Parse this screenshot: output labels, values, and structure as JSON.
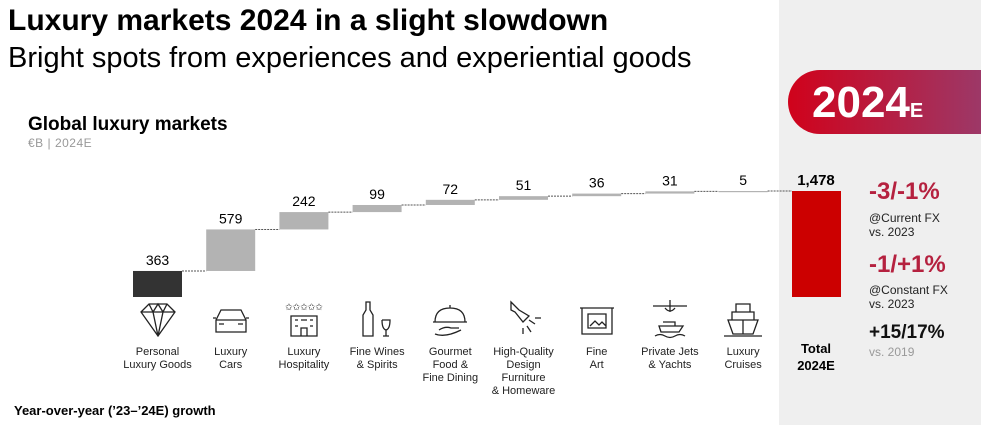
{
  "header": {
    "title": "Luxury markets 2024 in a slight slowdown",
    "subtitle": "Bright spots from experiences and experiential goods"
  },
  "banner": {
    "year": "2024",
    "suffix": "E"
  },
  "chart_data": {
    "type": "bar",
    "subtype": "waterfall",
    "title": "Global luxury markets",
    "unit": "€B | 2024E",
    "categories": [
      "Personal Luxury Goods",
      "Luxury Cars",
      "Luxury Hospitality",
      "Fine Wines & Spirits",
      "Gourmet Food & Fine Dining",
      "High-Quality Design Furniture & Homeware",
      "Fine Art",
      "Private Jets & Yachts",
      "Luxury Cruises"
    ],
    "label_lines": [
      [
        "Personal",
        "Luxury Goods"
      ],
      [
        "Luxury",
        "Cars"
      ],
      [
        "Luxury",
        "Hospitality"
      ],
      [
        "Fine Wines",
        "& Spirits"
      ],
      [
        "Gourmet",
        "Food &",
        "Fine Dining"
      ],
      [
        "High-Quality",
        "Design",
        "Furniture",
        "& Homeware"
      ],
      [
        "Fine",
        "Art"
      ],
      [
        "Private Jets",
        "& Yachts"
      ],
      [
        "Luxury",
        "Cruises"
      ]
    ],
    "icons": [
      "diamond-icon",
      "car-icon",
      "hotel-icon",
      "wine-icon",
      "cloche-icon",
      "lamp-icon",
      "art-frame-icon",
      "jet-yacht-icon",
      "cruise-ship-icon"
    ],
    "values": [
      363,
      579,
      242,
      99,
      72,
      51,
      36,
      31,
      5
    ],
    "value_labels": [
      "363",
      "579",
      "242",
      "99",
      "72",
      "51",
      "36",
      "31",
      "5"
    ],
    "total": {
      "value": 1478,
      "value_label": "1,478",
      "label_lines": [
        "Total",
        "2024E"
      ]
    },
    "colors": {
      "first": "#333333",
      "step": "#b3b3b3",
      "total": "#cc0000"
    }
  },
  "growth": [
    {
      "value": "-3/-1%",
      "lines": [
        "@Current FX",
        "vs. 2023"
      ]
    },
    {
      "value": "-1/+1%",
      "lines": [
        "@Constant FX",
        "vs. 2023"
      ]
    },
    {
      "value": "+15/17%",
      "lines": [
        "vs. 2019"
      ]
    }
  ],
  "footer": "Year-over-year (’23–’24E) growth"
}
